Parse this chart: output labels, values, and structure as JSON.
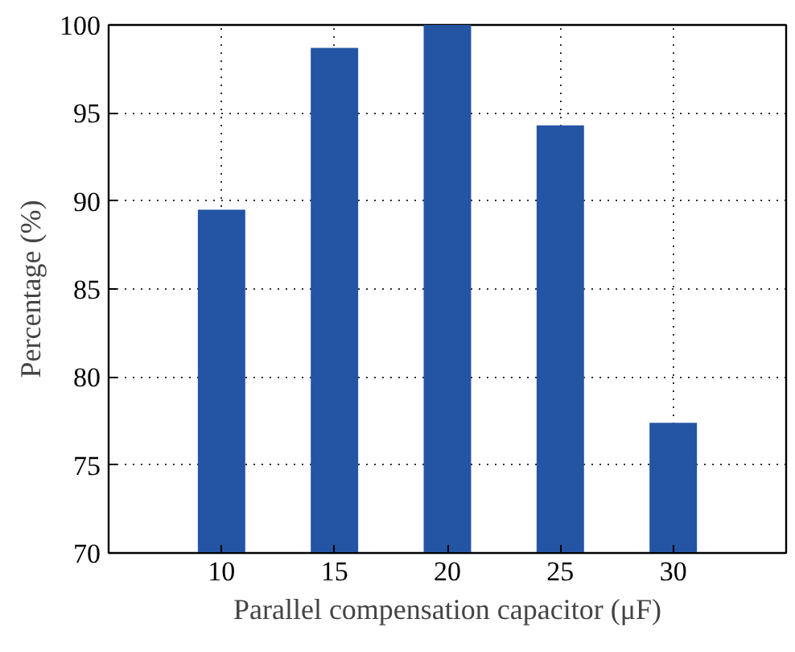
{
  "chart_data": {
    "type": "bar",
    "xlabel": "Parallel compensation capacitor (μF)",
    "ylabel": "Percentage (%)",
    "x": [
      10,
      15,
      20,
      25,
      30
    ],
    "values": [
      89.5,
      98.7,
      100,
      94.3,
      77.4
    ],
    "color": "#2455a4",
    "xlim": [
      5,
      35
    ],
    "xticks": [
      10,
      15,
      20,
      25,
      30
    ],
    "ylim": [
      70,
      100
    ],
    "yticks": [
      70,
      75,
      80,
      85,
      90,
      95,
      100
    ],
    "grid": true
  }
}
